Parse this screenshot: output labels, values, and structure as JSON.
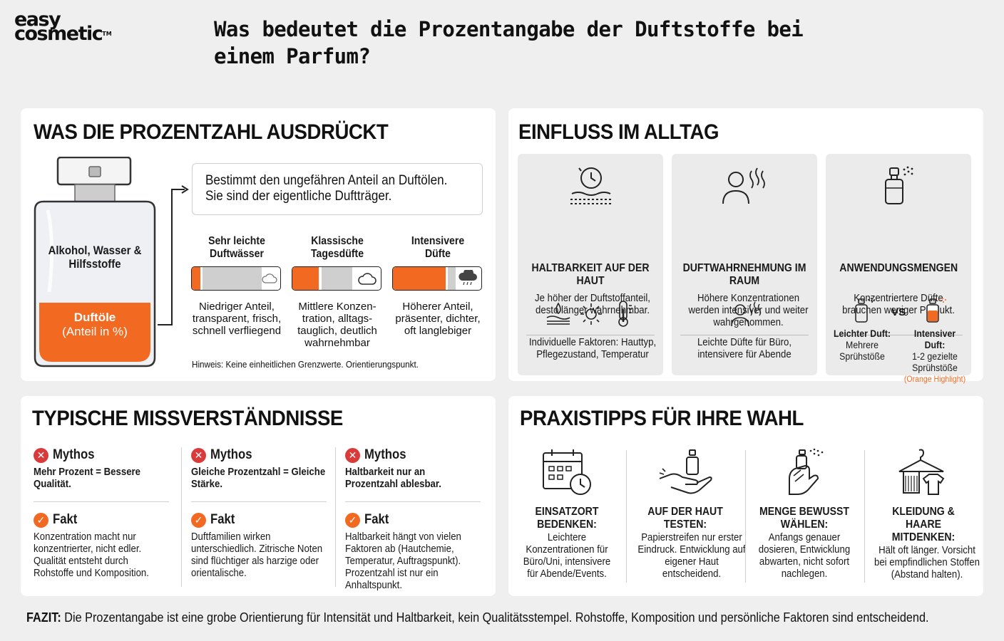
{
  "logo": {
    "line1": "easy",
    "line2": "cosmetic",
    "tm": "TM"
  },
  "title": "Was bedeutet die Prozentangabe der Duftstoffe bei einem Parfum?",
  "colors": {
    "accent": "#f26a21",
    "grey": "#cfcfcf",
    "dark": "#111111",
    "red": "#d93a3a"
  },
  "section1": {
    "title": "WAS DIE PROZENTZAHL AUSDRÜCKT",
    "bottle_top_label": "Alkohol, Wasser & Hilfsstoffe",
    "bottle_bottom_label": "Duftöle",
    "bottle_bottom_sub": "(Anteil in %)",
    "explain_line1": "Bestimmt den ungefähren Anteil an Duftölen.",
    "explain_line2": "Sie sind der eigentliche Duftträger.",
    "columns": [
      {
        "heading": "Sehr leichte Duftwässer",
        "fill": 0.1,
        "icon": "cloud-icon",
        "desc": "Niedriger Anteil, transparent, frisch, schnell verfliegend"
      },
      {
        "heading": "Klassische Tagesdüfte",
        "fill": 0.3,
        "icon": "cloud-icon",
        "desc": "Mittlere Konzen- tration, alltags- tauglich, deutlich wahrnehmbar"
      },
      {
        "heading": "Intensivere Düfte",
        "fill": 0.6,
        "icon": "storm-cloud-icon",
        "desc": "Höherer Anteil, präsenter, dichter, oft langlebiger"
      }
    ],
    "hint": "Hinweis: Keine einheitlichen Grenzwerte. Orientierungspunkt."
  },
  "section2": {
    "title": "EINFLUSS IM ALLTAG",
    "items": [
      {
        "heading": "HALTBARKEIT AUF DER HAUT",
        "desc": "Je höher der Duftstoffanteil, desto länger wahrnehmbar.",
        "footer": "Individuelle Faktoren: Hauttyp, Pflegezustand, Temperatur"
      },
      {
        "heading": "DUFTWAHRNEHMUNG IM RAUM",
        "desc": "Höhere Konzentrationen werden intensiver und weiter wahrgenommen.",
        "footer": "Leichte Düfte für Büro, intensivere für Abende"
      },
      {
        "heading": "ANWENDUNGSMENGEN",
        "desc": "Konzentriertere Düfte brauchen weniger Produkt.",
        "vs": "VS",
        "light_title": "Leichter Duft:",
        "light_desc": "Mehrere Sprühstöße",
        "intense_title": "Intensiver Duft:",
        "intense_desc": "1-2 gezielte Sprühstöße",
        "intense_note": "(Orange Highlight)"
      }
    ]
  },
  "section3": {
    "title": "TYPISCHE MISSVERSTÄNDNISSE",
    "myth_label": "Mythos",
    "fact_label": "Fakt",
    "items": [
      {
        "myth": "Mehr Prozent = Bessere Qualität.",
        "fact": "Konzentration macht nur konzentrierter, nicht edler. Qualität entsteht durch Rohstoffe und Komposition."
      },
      {
        "myth": "Gleiche Prozentzahl = Gleiche Stärke.",
        "fact": "Duftfamilien wirken unterschiedlich. Zitrische Noten sind flüchtiger als harzige oder orientalische."
      },
      {
        "myth": "Haltbarkeit nur an Prozentzahl ablesbar.",
        "fact": "Haltbarkeit hängt von vielen Faktoren ab (Hautchemie, Temperatur, Auftragspunkt). Prozentzahl ist nur ein Anhaltspunkt."
      }
    ]
  },
  "section4": {
    "title": "PRAXISTIPPS FÜR IHRE WAHL",
    "items": [
      {
        "heading": "EINSATZORT BEDENKEN:",
        "desc": "Leichtere Konzentrationen für Büro/Uni, intensivere für Abende/Events.",
        "icon": "calendar-clock-icon"
      },
      {
        "heading": "AUF DER HAUT TESTEN:",
        "desc": "Papierstreifen nur erster Eindruck. Entwicklung auf eigener Haut entscheidend.",
        "icon": "hand-bottle-icon"
      },
      {
        "heading": "MENGE BEWUSST WÄHLEN:",
        "desc": "Anfangs genauer dosieren, Entwicklung abwarten, nicht sofort nachlegen.",
        "icon": "hand-spray-icon"
      },
      {
        "heading": "KLEIDUNG & HAARE MITDENKEN:",
        "desc": "Hält oft länger. Vorsicht bei empfindlichen Stoffen (Abstand halten).",
        "icon": "hanger-clothes-icon"
      }
    ]
  },
  "fazit": {
    "label": "FAZIT:",
    "text": " Die Prozentangabe ist eine grobe Orientierung für Intensität und Haltbarkeit, kein Qualitätsstempel. Rohstoffe, Komposition und persönliche Faktoren sind entscheidend."
  }
}
